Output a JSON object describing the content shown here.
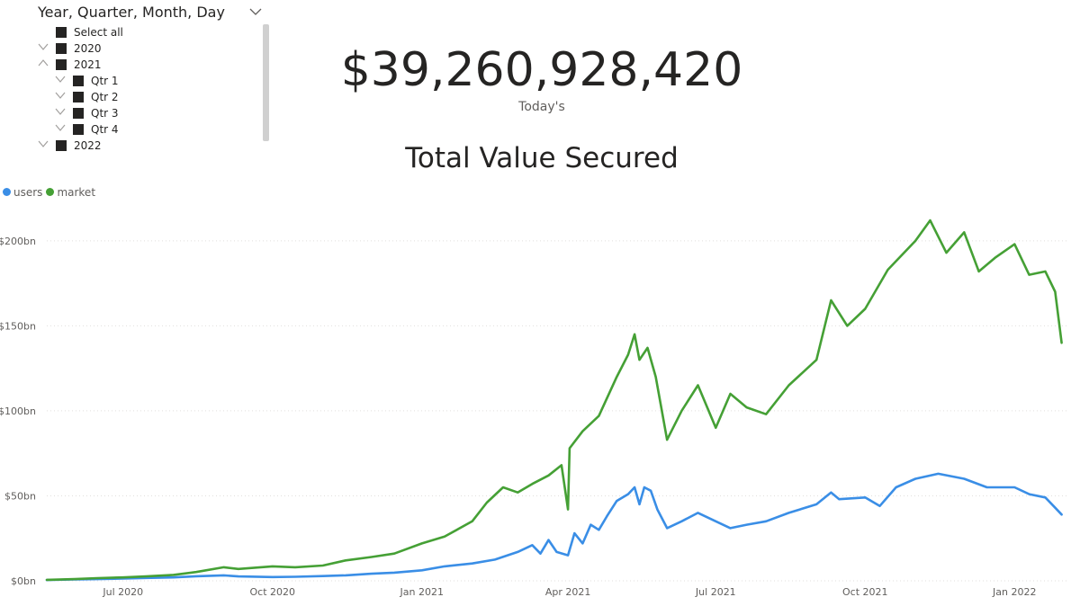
{
  "slicer": {
    "title": "Year, Quarter, Month, Day",
    "items": [
      {
        "label": "Select all",
        "level": 0,
        "expander": "none"
      },
      {
        "label": "2020",
        "level": 0,
        "expander": "collapsed"
      },
      {
        "label": "2021",
        "level": 0,
        "expander": "expanded"
      },
      {
        "label": "Qtr 1",
        "level": 1,
        "expander": "collapsed"
      },
      {
        "label": "Qtr 2",
        "level": 1,
        "expander": "collapsed"
      },
      {
        "label": "Qtr 3",
        "level": 1,
        "expander": "collapsed"
      },
      {
        "label": "Qtr 4",
        "level": 1,
        "expander": "collapsed"
      },
      {
        "label": "2022",
        "level": 0,
        "expander": "collapsed"
      }
    ]
  },
  "kpi": {
    "value": "$39,260,928,420",
    "label": "Today's"
  },
  "chart_data": {
    "type": "line",
    "title": "Total Value Secured",
    "xlabel": "",
    "ylabel": "",
    "ylim": [
      0,
      220
    ],
    "xlim": [
      "2020-05-15",
      "2022-02-02"
    ],
    "y_ticks": [
      {
        "value": 0,
        "label": "$0bn"
      },
      {
        "value": 50,
        "label": "$50bn"
      },
      {
        "value": 100,
        "label": "$100bn"
      },
      {
        "value": 150,
        "label": "$150bn"
      },
      {
        "value": 200,
        "label": "$200bn"
      }
    ],
    "x_ticks": [
      {
        "date": "2020-07-01",
        "label": "Jul 2020"
      },
      {
        "date": "2020-10-01",
        "label": "Oct 2020"
      },
      {
        "date": "2021-01-01",
        "label": "Jan 2021"
      },
      {
        "date": "2021-04-01",
        "label": "Apr 2021"
      },
      {
        "date": "2021-07-01",
        "label": "Jul 2021"
      },
      {
        "date": "2021-10-01",
        "label": "Oct 2021"
      },
      {
        "date": "2022-01-01",
        "label": "Jan 2022"
      }
    ],
    "grid": "horizontal dotted",
    "legend_position": "top-left",
    "series": [
      {
        "name": "users",
        "color": "#3a8ee6",
        "points": [
          [
            "2020-05-15",
            0.5
          ],
          [
            "2020-06-01",
            0.8
          ],
          [
            "2020-06-15",
            1.0
          ],
          [
            "2020-07-01",
            1.3
          ],
          [
            "2020-07-15",
            1.7
          ],
          [
            "2020-08-01",
            2.0
          ],
          [
            "2020-08-15",
            2.7
          ],
          [
            "2020-09-01",
            3.2
          ],
          [
            "2020-09-10",
            2.6
          ],
          [
            "2020-10-01",
            2.2
          ],
          [
            "2020-10-15",
            2.4
          ],
          [
            "2020-11-01",
            2.8
          ],
          [
            "2020-11-15",
            3.2
          ],
          [
            "2020-12-01",
            4.2
          ],
          [
            "2020-12-15",
            4.8
          ],
          [
            "2021-01-01",
            6.2
          ],
          [
            "2021-01-15",
            8.5
          ],
          [
            "2021-02-01",
            10.2
          ],
          [
            "2021-02-15",
            12.5
          ],
          [
            "2021-03-01",
            17
          ],
          [
            "2021-03-10",
            21
          ],
          [
            "2021-03-15",
            16
          ],
          [
            "2021-03-20",
            24
          ],
          [
            "2021-03-25",
            17
          ],
          [
            "2021-04-01",
            15
          ],
          [
            "2021-04-05",
            28
          ],
          [
            "2021-04-10",
            22
          ],
          [
            "2021-04-15",
            33
          ],
          [
            "2021-04-20",
            30
          ],
          [
            "2021-04-25",
            38
          ],
          [
            "2021-05-01",
            47
          ],
          [
            "2021-05-08",
            51
          ],
          [
            "2021-05-12",
            55
          ],
          [
            "2021-05-15",
            45
          ],
          [
            "2021-05-18",
            55
          ],
          [
            "2021-05-22",
            53
          ],
          [
            "2021-05-26",
            42
          ],
          [
            "2021-06-01",
            31
          ],
          [
            "2021-06-10",
            35
          ],
          [
            "2021-06-20",
            40
          ],
          [
            "2021-07-01",
            35
          ],
          [
            "2021-07-10",
            31
          ],
          [
            "2021-07-20",
            33
          ],
          [
            "2021-08-01",
            35
          ],
          [
            "2021-08-15",
            40
          ],
          [
            "2021-09-01",
            45
          ],
          [
            "2021-09-10",
            52
          ],
          [
            "2021-09-15",
            48
          ],
          [
            "2021-10-01",
            49
          ],
          [
            "2021-10-10",
            44
          ],
          [
            "2021-10-20",
            55
          ],
          [
            "2021-11-01",
            60
          ],
          [
            "2021-11-15",
            63
          ],
          [
            "2021-12-01",
            60
          ],
          [
            "2021-12-15",
            55
          ],
          [
            "2022-01-01",
            55
          ],
          [
            "2022-01-10",
            51
          ],
          [
            "2022-01-20",
            49
          ],
          [
            "2022-01-26",
            43
          ],
          [
            "2022-01-30",
            39
          ]
        ]
      },
      {
        "name": "market",
        "color": "#45a035",
        "points": [
          [
            "2020-05-15",
            0.6
          ],
          [
            "2020-06-01",
            1.0
          ],
          [
            "2020-06-15",
            1.6
          ],
          [
            "2020-07-01",
            2.0
          ],
          [
            "2020-07-15",
            2.6
          ],
          [
            "2020-08-01",
            3.5
          ],
          [
            "2020-08-15",
            5.2
          ],
          [
            "2020-09-01",
            8.0
          ],
          [
            "2020-09-10",
            7.0
          ],
          [
            "2020-10-01",
            8.5
          ],
          [
            "2020-10-15",
            8.0
          ],
          [
            "2020-11-01",
            9.0
          ],
          [
            "2020-11-15",
            12.0
          ],
          [
            "2020-12-01",
            14.0
          ],
          [
            "2020-12-15",
            16.0
          ],
          [
            "2021-01-01",
            22
          ],
          [
            "2021-01-15",
            26
          ],
          [
            "2021-02-01",
            35
          ],
          [
            "2021-02-10",
            46
          ],
          [
            "2021-02-20",
            55
          ],
          [
            "2021-03-01",
            52
          ],
          [
            "2021-03-10",
            57
          ],
          [
            "2021-03-20",
            62
          ],
          [
            "2021-03-28",
            68
          ],
          [
            "2021-04-01",
            42
          ],
          [
            "2021-04-02",
            78
          ],
          [
            "2021-04-10",
            88
          ],
          [
            "2021-04-20",
            97
          ],
          [
            "2021-05-01",
            120
          ],
          [
            "2021-05-08",
            133
          ],
          [
            "2021-05-12",
            145
          ],
          [
            "2021-05-15",
            130
          ],
          [
            "2021-05-20",
            137
          ],
          [
            "2021-05-25",
            120
          ],
          [
            "2021-06-01",
            83
          ],
          [
            "2021-06-10",
            100
          ],
          [
            "2021-06-20",
            115
          ],
          [
            "2021-07-01",
            90
          ],
          [
            "2021-07-10",
            110
          ],
          [
            "2021-07-20",
            102
          ],
          [
            "2021-08-01",
            98
          ],
          [
            "2021-08-15",
            115
          ],
          [
            "2021-09-01",
            130
          ],
          [
            "2021-09-10",
            165
          ],
          [
            "2021-09-20",
            150
          ],
          [
            "2021-10-01",
            160
          ],
          [
            "2021-10-15",
            183
          ],
          [
            "2021-11-01",
            200
          ],
          [
            "2021-11-10",
            212
          ],
          [
            "2021-11-20",
            193
          ],
          [
            "2021-12-01",
            205
          ],
          [
            "2021-12-10",
            182
          ],
          [
            "2021-12-20",
            190
          ],
          [
            "2022-01-01",
            198
          ],
          [
            "2022-01-10",
            180
          ],
          [
            "2022-01-20",
            182
          ],
          [
            "2022-01-26",
            170
          ],
          [
            "2022-01-30",
            140
          ]
        ]
      }
    ]
  }
}
